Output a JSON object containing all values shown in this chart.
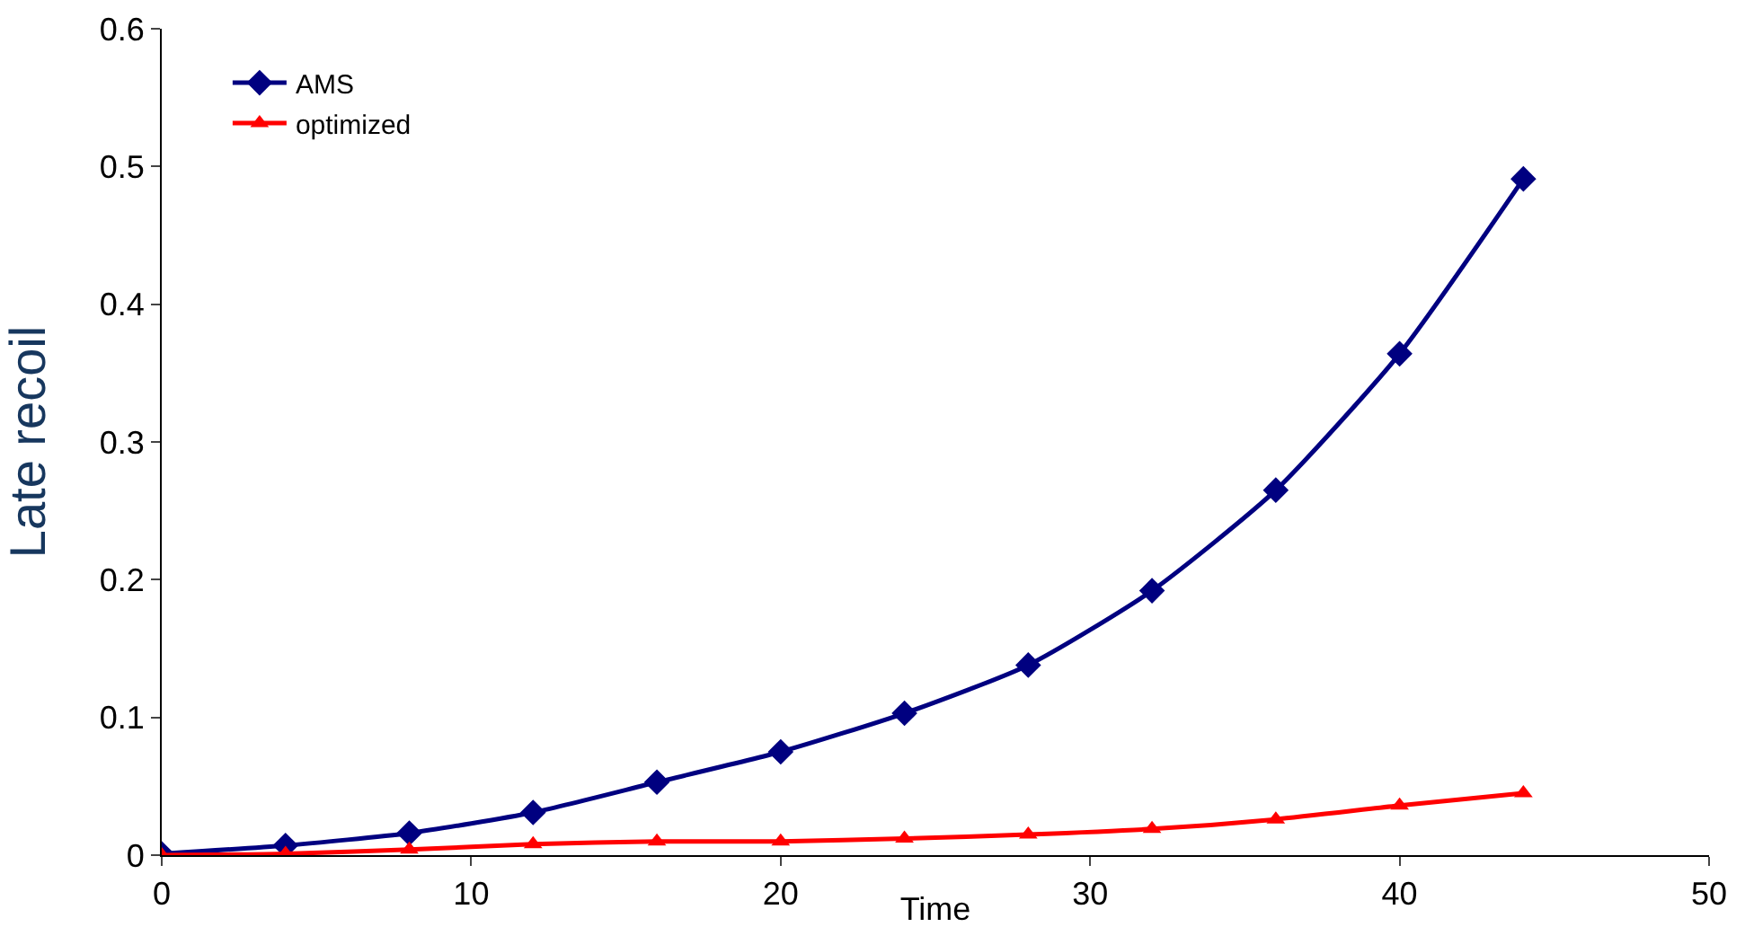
{
  "chart_data": {
    "type": "line",
    "xlabel": "Time",
    "ylabel": "Late recoil",
    "x": [
      0,
      4,
      8,
      12,
      16,
      20,
      24,
      28,
      32,
      36,
      40,
      44
    ],
    "series": [
      {
        "name": "AMS",
        "color": "#000080",
        "marker": "diamond",
        "values": [
          0.001,
          0.007,
          0.016,
          0.031,
          0.053,
          0.075,
          0.103,
          0.138,
          0.192,
          0.265,
          0.364,
          0.491
        ]
      },
      {
        "name": "optimized",
        "color": "#ff0000",
        "marker": "triangle",
        "values": [
          0,
          0.001,
          0.004,
          0.008,
          0.01,
          0.01,
          0.012,
          0.015,
          0.019,
          0.026,
          0.036,
          0.045
        ]
      }
    ],
    "xlim": [
      0,
      50
    ],
    "xticks": [
      0,
      10,
      20,
      30,
      40,
      50
    ],
    "ylim": [
      0,
      0.6
    ],
    "yticks": [
      0,
      0.1,
      0.2,
      0.3,
      0.4,
      0.5,
      0.6
    ],
    "grid": false,
    "legend": "top left",
    "line_style": "solid"
  }
}
